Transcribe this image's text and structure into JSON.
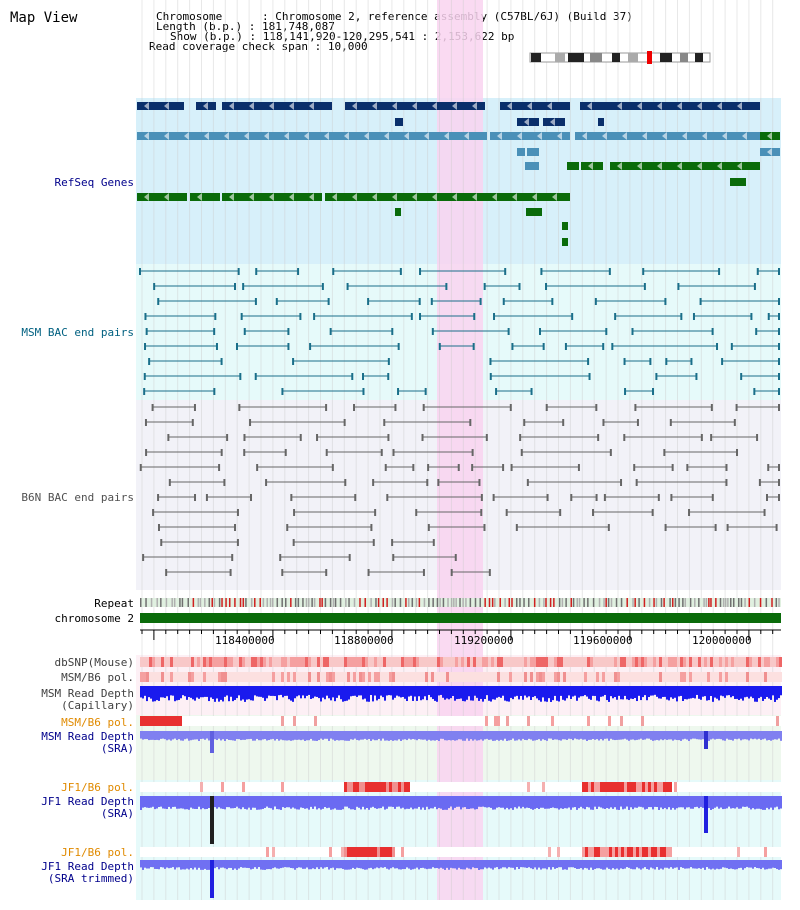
{
  "title": "Map View",
  "info": {
    "chromosome_label": "Chromosome",
    "chromosome_value": "Chromosome 2, reference assembly (C57BL/6J) (Build 37)",
    "length_label": "Length (b.p.)",
    "length_value": "181,748,087",
    "show_label": "Show (b.p.)",
    "show_value": "118,141,920-120,295,541 : 2,153,622 bp",
    "coverage_label": "Read coverage check span",
    "coverage_value": "10,000"
  },
  "tracks": {
    "refseq": "RefSeq Genes",
    "msm_bac": "MSM BAC end pairs",
    "b6n_bac": "B6N BAC end pairs",
    "repeat": "Repeat",
    "chromosome": "chromosome 2",
    "dbsnp": "dbSNP(Mouse)",
    "msm_b6_pol_1": "MSM/B6 pol.",
    "msm_depth_cap_1": "MSM Read Depth",
    "msm_depth_cap_2": "(Capillary)",
    "msm_b6_pol_2": "MSM/B6 pol.",
    "msm_depth_sra_1": "MSM Read Depth",
    "msm_depth_sra_2": "(SRA)",
    "jf1_b6_pol_1": "JF1/B6 pol.",
    "jf1_depth_sra_1": "JF1 Read Depth",
    "jf1_depth_sra_2": "(SRA)",
    "jf1_b6_pol_2": "JF1/B6 pol.",
    "jf1_depth_trim_1": "JF1 Read Depth",
    "jf1_depth_trim_2": "(SRA trimmed)"
  },
  "axis_ticks": [
    "118400000",
    "118800000",
    "119200000",
    "119600000",
    "120000000"
  ],
  "colors": {
    "refseq_bg": "#d7f0fa",
    "msm_bg": "#e6fafa",
    "b6n_bg": "#f2f2f8",
    "highlight": "#f9d4f0",
    "gene_dark": "#0a2f6b",
    "gene_mid": "#4a90b8",
    "gene_green": "#0a6b0a",
    "label_blue": "#00008b",
    "label_teal": "#006080",
    "label_gray": "#505050",
    "label_orange": "#e08a00"
  }
}
